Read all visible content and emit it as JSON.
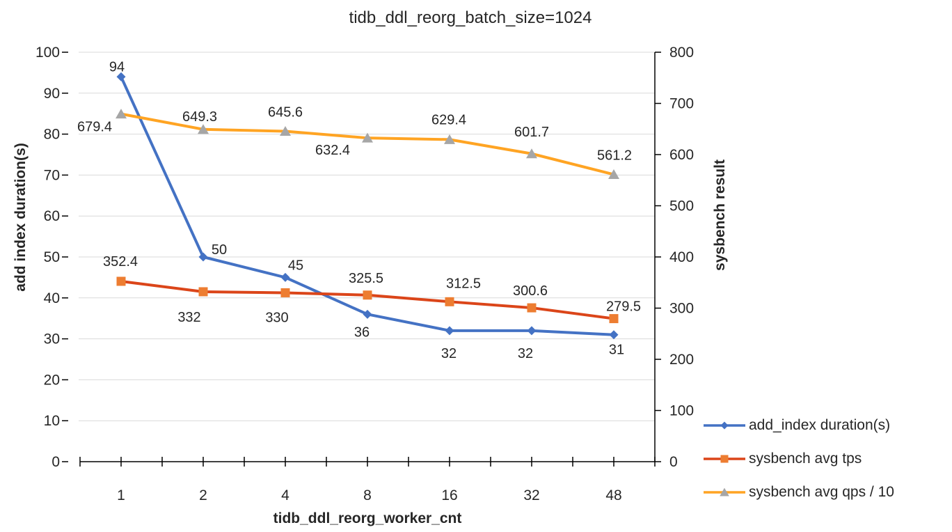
{
  "chart_data": {
    "type": "line",
    "title": "tidb_ddl_reorg_batch_size=1024",
    "categories": [
      "1",
      "2",
      "4",
      "8",
      "16",
      "32",
      "48"
    ],
    "x_axis": {
      "label": "tidb_ddl_reorg_worker_cnt"
    },
    "left_axis": {
      "label": "add index duration(s)",
      "min": 0,
      "max": 100,
      "step": 10
    },
    "right_axis": {
      "label": "sysbench result",
      "min": 0,
      "max": 800,
      "step": 100
    },
    "grid": true,
    "legend_position": "bottom-right",
    "gridline_color": "#D9D9D9",
    "axis_color": "#000000",
    "text_color": "#262626",
    "background_color": "#FFFFFF",
    "series": [
      {
        "name": "add_index duration(s)",
        "axis": "left",
        "line_color": "#4472C4",
        "marker": "diamond",
        "marker_color": "#4472C4",
        "values": [
          94,
          50,
          45,
          36,
          32,
          32,
          31
        ],
        "labels": [
          "94",
          "50",
          "45",
          "36",
          "32",
          "32",
          "31"
        ],
        "label_offsets": [
          [
            -6,
            -15
          ],
          [
            23,
            -11
          ],
          [
            15,
            -18
          ],
          [
            -8,
            25
          ],
          [
            -1,
            32
          ],
          [
            -9,
            32
          ],
          [
            4,
            21
          ]
        ]
      },
      {
        "name": "sysbench avg tps",
        "axis": "right",
        "line_color": "#DB4519",
        "marker": "square",
        "marker_color": "#ED7D31",
        "values": [
          352.4,
          332,
          330,
          325.5,
          312.5,
          300.6,
          279.5
        ],
        "labels": [
          "352.4",
          "332",
          "330",
          "325.5",
          "312.5",
          "300.6",
          "279.5"
        ],
        "label_offsets": [
          [
            -1,
            -29
          ],
          [
            -20,
            36
          ],
          [
            -12,
            35
          ],
          [
            -2,
            -25
          ],
          [
            20,
            -27
          ],
          [
            -2,
            -25
          ],
          [
            14,
            -18
          ]
        ]
      },
      {
        "name": "sysbench avg qps / 10",
        "axis": "right",
        "line_color": "#FFA423",
        "marker": "triangle",
        "marker_color": "#A6A6A6",
        "values": [
          679.4,
          649.3,
          645.6,
          632.4,
          629.4,
          601.7,
          561.2
        ],
        "labels": [
          "679.4",
          "649.3",
          "645.6",
          "632.4",
          "629.4",
          "601.7",
          "561.2"
        ],
        "label_offsets": [
          [
            -38,
            18
          ],
          [
            -5,
            -19
          ],
          [
            0,
            -28
          ],
          [
            -50,
            17
          ],
          [
            -1,
            -29
          ],
          [
            0,
            -32
          ],
          [
            1,
            -28
          ]
        ]
      }
    ]
  }
}
